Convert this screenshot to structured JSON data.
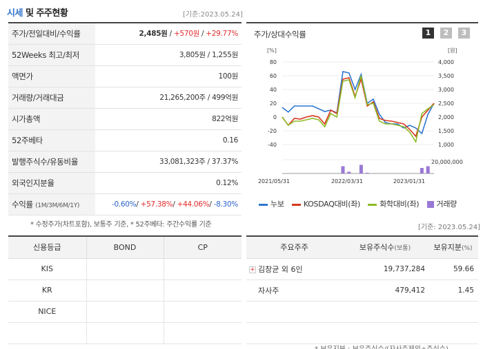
{
  "header": {
    "title_blue": "시세",
    "title_rest": " 및 주주현황",
    "date": "[기준:2023.05.24]"
  },
  "market": {
    "rows": [
      {
        "label": "주가/전일대비/수익률",
        "price": "2,485원",
        "sep": " / ",
        "change": "+570원",
        "sep2": " / ",
        "rate": "+29.77%"
      },
      {
        "label": "52Weeks 최고/최저",
        "value": "3,805원 / 1,255원"
      },
      {
        "label": "액면가",
        "value": "100원"
      },
      {
        "label": "거래량/거래대금",
        "value": "21,265,200주 / 499억원"
      },
      {
        "label": "시가총액",
        "value": "822억원"
      },
      {
        "label": "52주베타",
        "value": "0.16"
      },
      {
        "label": "발행주식수/유동비율",
        "value": "33,081,323주 / 37.37%"
      },
      {
        "label": "외국인지분율",
        "value": "0.12%"
      },
      {
        "label": "수익률",
        "label_small": "(1M/3M/6M/1Y)",
        "r1": "-0.60%",
        "r2": "+57.38%",
        "r3": "+44.06%",
        "r4": "-8.30%"
      }
    ],
    "note": "* 수정주가(차트포함), 보통주 기준, * 52주베타: 주간수익률 기준"
  },
  "chart_panel": {
    "title": "주가/상대수익률",
    "period_buttons": [
      "1",
      "2",
      "3"
    ],
    "left_unit": "[%]",
    "right_unit": "[원]",
    "note": "[기준: 2023.05.24]",
    "legend": [
      {
        "label": "누보",
        "color": "#2f77d0"
      },
      {
        "label": "KOSDAQ대비(좌)",
        "color": "#d9361e"
      },
      {
        "label": "화학대비(좌)",
        "color": "#8dbb26"
      },
      {
        "label": "거래량",
        "color": "#9a78d6"
      }
    ]
  },
  "chart_data": {
    "type": "line",
    "x_ticks": [
      "2021/05/31",
      "2022/03/31",
      "2023/01/31"
    ],
    "y_left_ticks": [
      "80",
      "60",
      "40",
      "20",
      "0",
      "-20",
      "-40"
    ],
    "y_left_range": [
      -40,
      80
    ],
    "y_right_ticks": [
      "4,000",
      "3,500",
      "3,000",
      "2,500",
      "2,000",
      "1,500",
      "1,000"
    ],
    "y_right_range": [
      1000,
      4000
    ],
    "volume_tick": "20,000,000",
    "volume_range": [
      0,
      20000000
    ],
    "series": [
      {
        "name": "누보",
        "color": "#2f77d0",
        "axis": "right",
        "values": [
          2350,
          2180,
          2400,
          2400,
          2400,
          2400,
          2300,
          2200,
          2250,
          2150,
          3650,
          3600,
          3000,
          3550,
          2500,
          2650,
          2100,
          1800,
          1750,
          1750,
          1600,
          1700,
          1600,
          1400,
          2100,
          2500
        ]
      },
      {
        "name": "KOSDAQ대비(좌)",
        "color": "#d9361e",
        "axis": "left",
        "values": [
          0,
          -12,
          -2,
          -3,
          0,
          2,
          0,
          -10,
          10,
          5,
          55,
          57,
          30,
          55,
          16,
          22,
          -2,
          -5,
          -6,
          -8,
          -10,
          -18,
          -28,
          0,
          10,
          20
        ]
      },
      {
        "name": "화학대비(좌)",
        "color": "#8dbb26",
        "axis": "left",
        "values": [
          0,
          -12,
          -6,
          -6,
          -4,
          -2,
          -4,
          -14,
          5,
          0,
          52,
          54,
          28,
          60,
          18,
          20,
          -6,
          -10,
          -10,
          -12,
          -14,
          -22,
          -36,
          5,
          12,
          18
        ]
      }
    ],
    "volume": {
      "name": "거래량",
      "color": "#9a78d6",
      "values": [
        0,
        0,
        0,
        0,
        0,
        0,
        0,
        0,
        0,
        0,
        10500000,
        2500000,
        0,
        12500000,
        1000000,
        0,
        0,
        0,
        0,
        0,
        0,
        0,
        0,
        8000000,
        10500000,
        0
      ]
    }
  },
  "credit": {
    "headers": [
      "신용등급",
      "BOND",
      "CP"
    ],
    "rows": [
      [
        "KIS",
        "",
        ""
      ],
      [
        "KR",
        "",
        ""
      ],
      [
        "NICE",
        "",
        ""
      ],
      [
        "",
        "",
        ""
      ]
    ]
  },
  "shareholders": {
    "headers": [
      "주요주주",
      "보유주식수",
      "(보통)",
      "보유지분",
      "(%)"
    ],
    "rows": [
      {
        "name": "김창균 외 6인",
        "expand": "+",
        "shares": "19,737,284",
        "pct": "59.66"
      },
      {
        "name": "자사주",
        "expand": "",
        "shares": "479,412",
        "pct": "1.45"
      },
      {
        "name": "",
        "expand": "",
        "shares": "",
        "pct": ""
      },
      {
        "name": "",
        "expand": "",
        "shares": "",
        "pct": ""
      }
    ],
    "note": "* 보유지분 : 보유주식수/(자사주제외+주식수)"
  }
}
